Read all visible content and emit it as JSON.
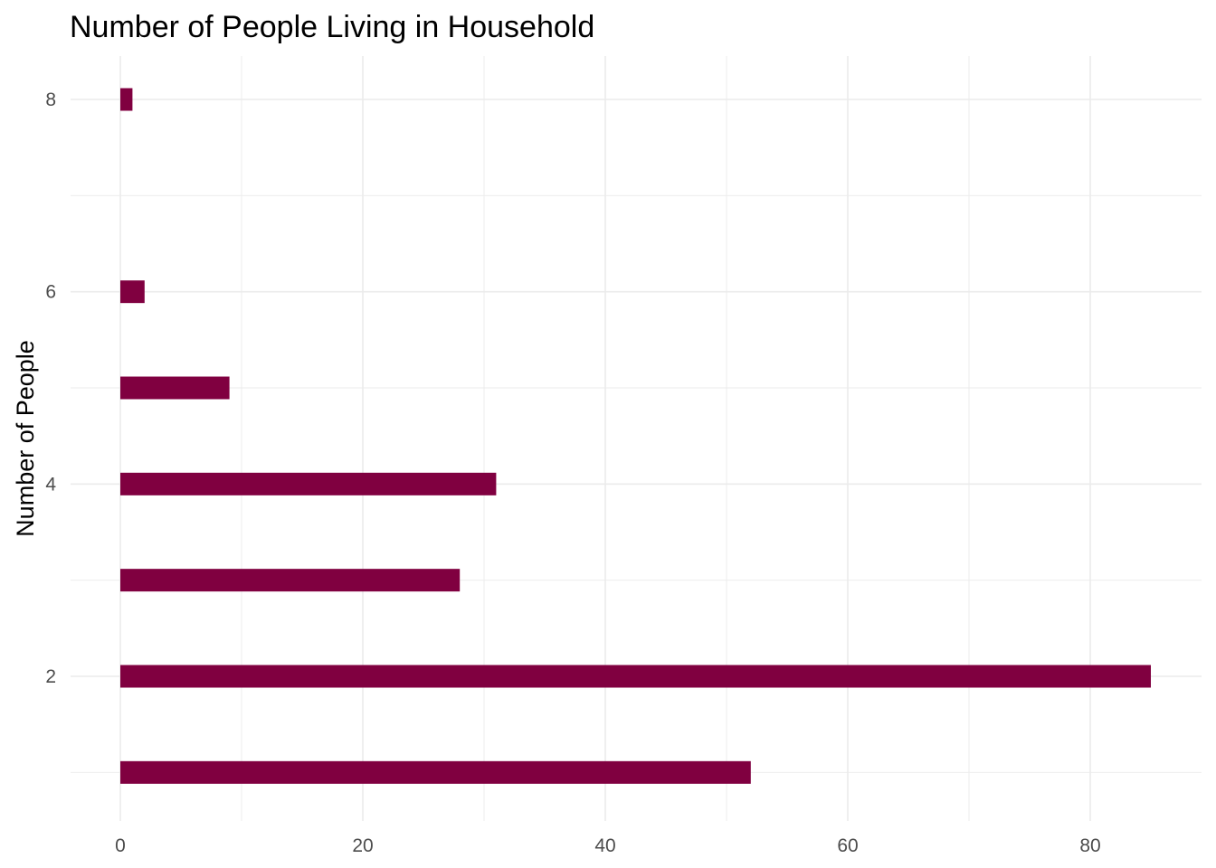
{
  "chart_data": {
    "type": "bar",
    "orientation": "horizontal",
    "title": "Number of People Living in Household",
    "xlabel": "",
    "ylabel": "Number of People",
    "categories": [
      1,
      2,
      3,
      4,
      5,
      6,
      8
    ],
    "values": [
      52,
      85,
      28,
      31,
      9,
      2,
      1
    ],
    "xlim": [
      0,
      88
    ],
    "ylim": [
      0.5,
      8.5
    ],
    "x_ticks": [
      0,
      20,
      40,
      60,
      80
    ],
    "y_ticks": [
      2,
      4,
      6,
      8
    ],
    "grid": true,
    "bar_color": "#800040",
    "background": "#ffffff"
  }
}
